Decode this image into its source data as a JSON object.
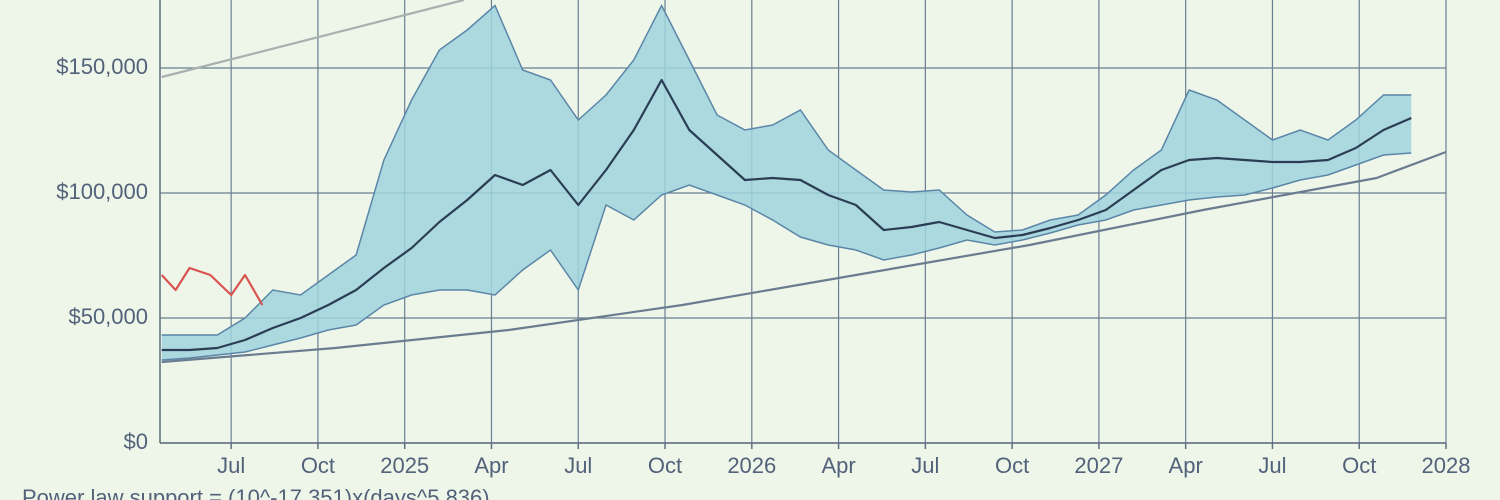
{
  "chart_data": {
    "type": "line",
    "background": "#eef6e9",
    "grid": true,
    "grid_color": "#6b7d92",
    "axis_color": "#5f6f82",
    "label_color": "#52627a",
    "xlim": [
      2024.295,
      2028
    ],
    "ylim": [
      0,
      177200
    ],
    "xticks": [
      {
        "value": 2024.5,
        "label": "Jul"
      },
      {
        "value": 2024.75,
        "label": "Oct"
      },
      2025,
      {
        "value": 2025.25,
        "label": "Apr"
      },
      {
        "value": 2025.5,
        "label": "Jul"
      },
      {
        "value": 2025.75,
        "label": "Oct"
      },
      2026,
      {
        "value": 2026.25,
        "label": "Apr"
      },
      {
        "value": 2026.5,
        "label": "Jul"
      },
      {
        "value": 2026.75,
        "label": "Oct"
      },
      2027,
      {
        "value": 2027.25,
        "label": "Apr"
      },
      {
        "value": 2027.5,
        "label": "Jul"
      },
      {
        "value": 2027.75,
        "label": "Oct"
      },
      2028
    ],
    "yticks": [
      {
        "value": 0,
        "label": "$0"
      },
      {
        "value": 50000,
        "label": "$50,000"
      },
      {
        "value": 100000,
        "label": "$100,000"
      },
      {
        "value": 150000,
        "label": "$150,000"
      }
    ],
    "band": {
      "fill": "#9fd3dd",
      "color": "#5b86a8",
      "x": [
        2024.3,
        2024.38,
        2024.46,
        2024.54,
        2024.62,
        2024.7,
        2024.78,
        2024.86,
        2024.94,
        2025.02,
        2025.1,
        2025.18,
        2025.26,
        2025.34,
        2025.42,
        2025.5,
        2025.58,
        2025.66,
        2025.74,
        2025.82,
        2025.9,
        2025.98,
        2026.06,
        2026.14,
        2026.22,
        2026.3,
        2026.38,
        2026.46,
        2026.54,
        2026.62,
        2026.7,
        2026.78,
        2026.86,
        2026.94,
        2027.02,
        2027.1,
        2027.18,
        2027.26,
        2027.34,
        2027.42,
        2027.5,
        2027.58,
        2027.66,
        2027.74,
        2027.82,
        2027.9
      ],
      "upper": [
        43200,
        43200,
        43200,
        50000,
        61200,
        59200,
        67200,
        75200,
        113200,
        137200,
        157200,
        165200,
        175000,
        149200,
        145200,
        129200,
        139200,
        153200,
        175000,
        153200,
        131200,
        125200,
        127200,
        133200,
        117200,
        109200,
        101200,
        100400,
        101200,
        91200,
        84400,
        85200,
        89200,
        91200,
        99200,
        109200,
        117200,
        141200,
        137200,
        129200,
        121200,
        125200,
        121200,
        129200,
        139200,
        139200
      ],
      "lower": [
        33200,
        34000,
        35200,
        36400,
        39200,
        42000,
        45200,
        47200,
        55200,
        59200,
        61200,
        61200,
        59200,
        69200,
        77200,
        61200,
        95200,
        89200,
        99200,
        103200,
        99200,
        95200,
        89200,
        82400,
        79200,
        77200,
        73200,
        75200,
        78000,
        81200,
        79200,
        81200,
        84000,
        87200,
        89200,
        93200,
        95200,
        97200,
        98400,
        99200,
        102000,
        105200,
        107200,
        111200,
        115200,
        116000
      ]
    },
    "series": [
      {
        "color": "#2b3d55",
        "x": [
          2024.3,
          2024.38,
          2024.46,
          2024.54,
          2024.62,
          2024.7,
          2024.78,
          2024.86,
          2024.94,
          2025.02,
          2025.1,
          2025.18,
          2025.26,
          2025.34,
          2025.42,
          2025.5,
          2025.58,
          2025.66,
          2025.74,
          2025.82,
          2025.9,
          2025.98,
          2026.06,
          2026.14,
          2026.22,
          2026.3,
          2026.38,
          2026.46,
          2026.54,
          2026.62,
          2026.7,
          2026.78,
          2026.86,
          2026.94,
          2027.02,
          2027.1,
          2027.18,
          2027.26,
          2027.34,
          2027.42,
          2027.5,
          2027.58,
          2027.66,
          2027.74,
          2027.82,
          2027.9
        ],
        "values": [
          37200,
          37200,
          38000,
          41200,
          46000,
          50000,
          55200,
          61200,
          70000,
          78000,
          88400,
          97200,
          107200,
          103200,
          109200,
          95200,
          109200,
          125200,
          145200,
          125200,
          115200,
          105200,
          106000,
          105200,
          99200,
          95200,
          85200,
          86400,
          88400,
          85200,
          82000,
          83200,
          86000,
          89200,
          93200,
          101200,
          109200,
          113200,
          114000,
          113200,
          112400,
          112400,
          113200,
          118000,
          125200,
          130000
        ]
      },
      {
        "color": "#d9534f",
        "x": [
          2024.3,
          2024.34,
          2024.38,
          2024.44,
          2024.5,
          2024.54,
          2024.59
        ],
        "values": [
          67200,
          61200,
          70000,
          67200,
          59200,
          67200,
          55200
        ]
      },
      {
        "color": "#6a7c90",
        "x": [
          2024.3,
          2024.8,
          2025.3,
          2025.8,
          2026.3,
          2026.8,
          2027.3,
          2027.8,
          2028
        ],
        "values": [
          32400,
          38000,
          45200,
          55200,
          67200,
          79200,
          93200,
          106000,
          116400
        ]
      },
      {
        "color": "#a8b0b0",
        "x": [
          2024.3,
          2025.17
        ],
        "values": [
          146400,
          177200
        ]
      }
    ],
    "annotation": "Power law support = (10^-17.351)x(days^5.836)"
  }
}
